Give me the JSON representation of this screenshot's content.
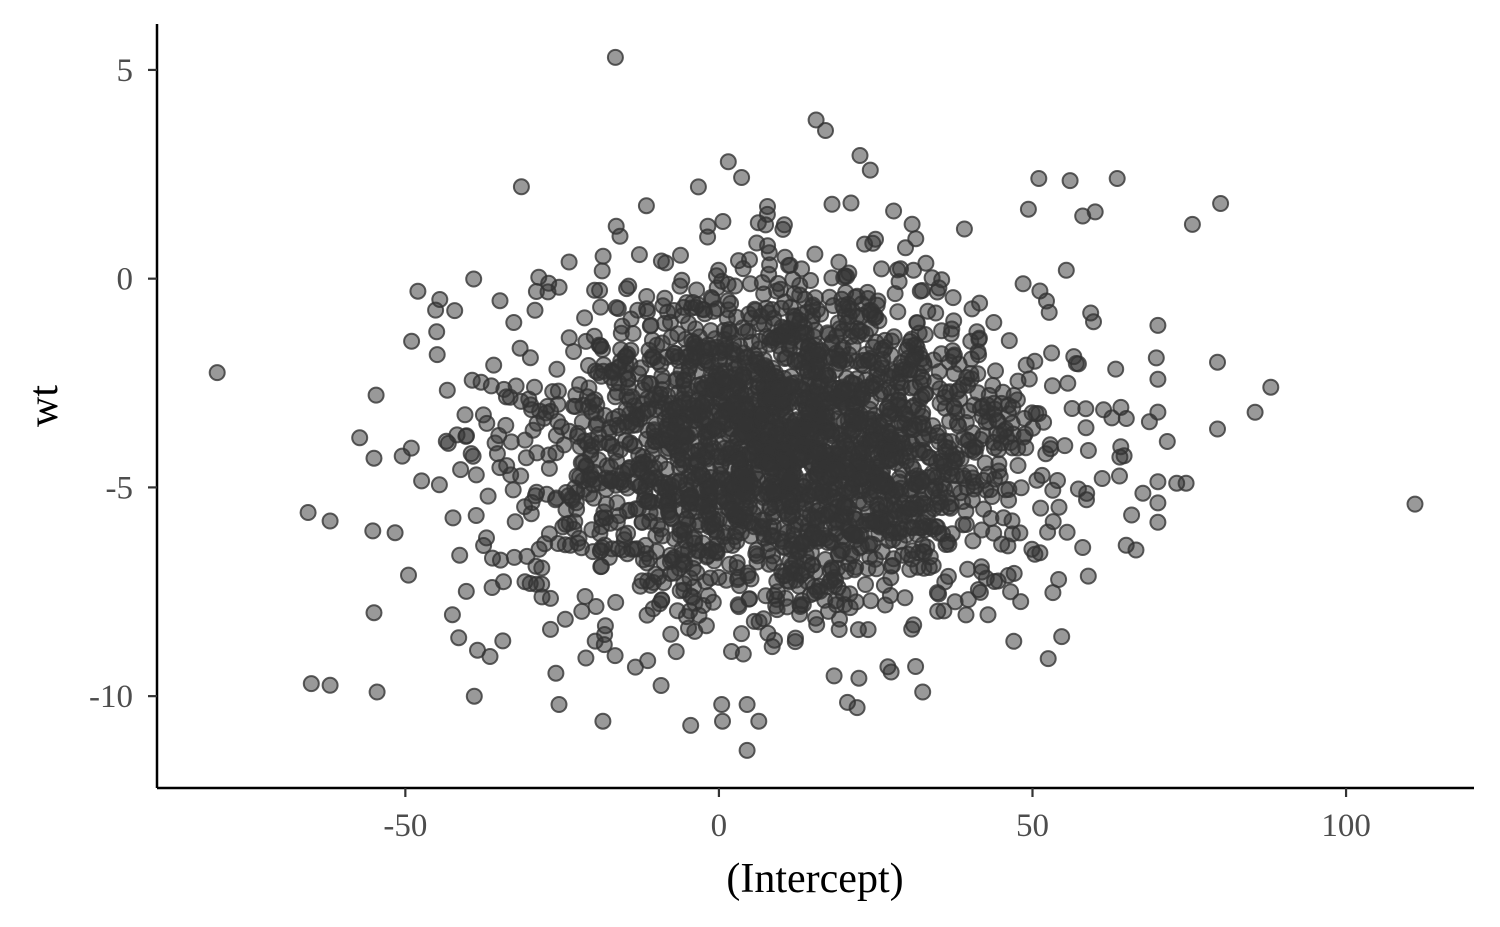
{
  "chart_data": {
    "type": "scatter",
    "title": "",
    "xlabel": "(Intercept)",
    "ylabel": "wt",
    "xlim": [
      -89.6,
      120.4
    ],
    "ylim": [
      -12.2,
      6.1
    ],
    "x_ticks": [
      -50,
      0,
      50,
      100
    ],
    "x_tick_labels": [
      "-50",
      "0",
      "50",
      "100"
    ],
    "y_ticks": [
      5,
      0,
      -5,
      -10
    ],
    "y_tick_labels": [
      "5",
      "0",
      "-5",
      "-10"
    ],
    "grid": false,
    "legend": "none",
    "point_color": "#333333",
    "point_alpha": 0.5,
    "generated_cloud": {
      "count": 2600,
      "x_mean": 10.5,
      "x_sd": 20.5,
      "y_mean": -4.0,
      "y_sd": 2.05
    },
    "outliers": [
      {
        "x": 111,
        "y": -5.4
      },
      {
        "x": -80,
        "y": -2.25
      },
      {
        "x": -16.5,
        "y": 5.3
      },
      {
        "x": 80,
        "y": 1.8
      },
      {
        "x": 88,
        "y": -2.6
      },
      {
        "x": 85.5,
        "y": -3.2
      },
      {
        "x": 75.5,
        "y": 1.3
      },
      {
        "x": 79.5,
        "y": -2.0
      },
      {
        "x": 79.5,
        "y": -3.6
      },
      {
        "x": 74.5,
        "y": -4.9
      },
      {
        "x": 73,
        "y": -4.9
      },
      {
        "x": 71.5,
        "y": -3.9
      },
      {
        "x": 66.5,
        "y": -6.5
      },
      {
        "x": 63.5,
        "y": 2.4
      },
      {
        "x": 56,
        "y": 2.35
      },
      {
        "x": 51,
        "y": 2.4
      },
      {
        "x": 60,
        "y": 1.6
      },
      {
        "x": 58,
        "y": 1.5
      },
      {
        "x": -65.5,
        "y": -5.6
      },
      {
        "x": -65,
        "y": -9.7
      },
      {
        "x": -54.5,
        "y": -9.9
      },
      {
        "x": -55,
        "y": -8.0
      },
      {
        "x": -55,
        "y": -4.3
      },
      {
        "x": -49.5,
        "y": -7.1
      },
      {
        "x": -49,
        "y": -1.5
      },
      {
        "x": -48,
        "y": -0.3
      },
      {
        "x": -44.5,
        "y": -0.5
      },
      {
        "x": -50.5,
        "y": -4.25
      },
      {
        "x": -39,
        "y": -10.0
      },
      {
        "x": -41.5,
        "y": -8.6
      },
      {
        "x": -36.5,
        "y": -9.05
      },
      {
        "x": -38.5,
        "y": -8.9
      },
      {
        "x": -42.5,
        "y": -8.05
      },
      {
        "x": -31.5,
        "y": 2.2
      },
      {
        "x": -26,
        "y": -9.45
      },
      {
        "x": -25.5,
        "y": -10.2
      },
      {
        "x": -18.5,
        "y": -10.6
      },
      {
        "x": -4.5,
        "y": -10.7
      },
      {
        "x": 4.5,
        "y": -11.3
      },
      {
        "x": 4.5,
        "y": -10.2
      },
      {
        "x": 20.5,
        "y": -10.15
      },
      {
        "x": 32.5,
        "y": -9.9
      },
      {
        "x": 52.5,
        "y": -9.1
      },
      {
        "x": 15.5,
        "y": 3.8
      },
      {
        "x": 17,
        "y": 3.55
      },
      {
        "x": 1.5,
        "y": 2.8
      },
      {
        "x": 22.5,
        "y": 2.95
      }
    ]
  }
}
